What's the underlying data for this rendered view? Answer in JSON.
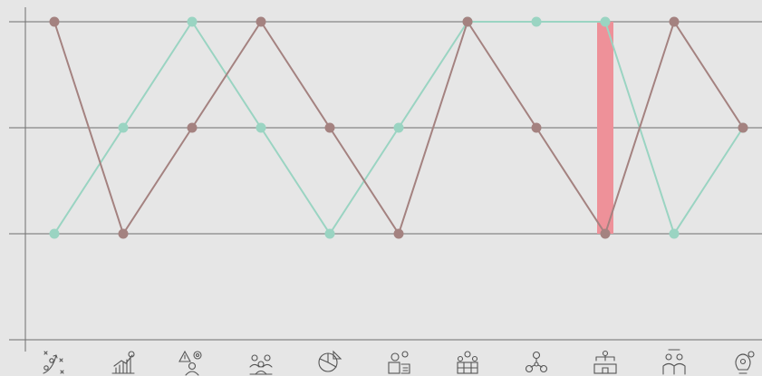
{
  "chart_data": {
    "type": "line",
    "categories": [
      "strategy-icon",
      "growth-chart-icon",
      "risk-management-icon",
      "team-meeting-icon",
      "pie-analysis-icon",
      "business-process-icon",
      "organization-icon",
      "leadership-network-icon",
      "company-hierarchy-icon",
      "group-collaboration-icon",
      "innovation-bulb-icon"
    ],
    "ylim": [
      0,
      3
    ],
    "yticks": [
      0,
      1,
      2,
      3
    ],
    "grid": "horizontal",
    "series": [
      {
        "color": "#9ad4c2",
        "values": [
          1,
          2,
          3,
          2,
          1,
          2,
          3,
          3,
          3,
          1,
          2
        ]
      },
      {
        "color": "#a48280",
        "values": [
          3,
          1,
          2,
          3,
          2,
          1,
          3,
          2,
          1,
          3,
          2
        ]
      }
    ],
    "highlight": {
      "category_index": 8,
      "from": 1,
      "to": 3,
      "color": "#ee9199"
    },
    "colors": {
      "background": "#e6e6e6",
      "grid": "#6f6f6f",
      "axis": "#6f6f6f"
    }
  }
}
